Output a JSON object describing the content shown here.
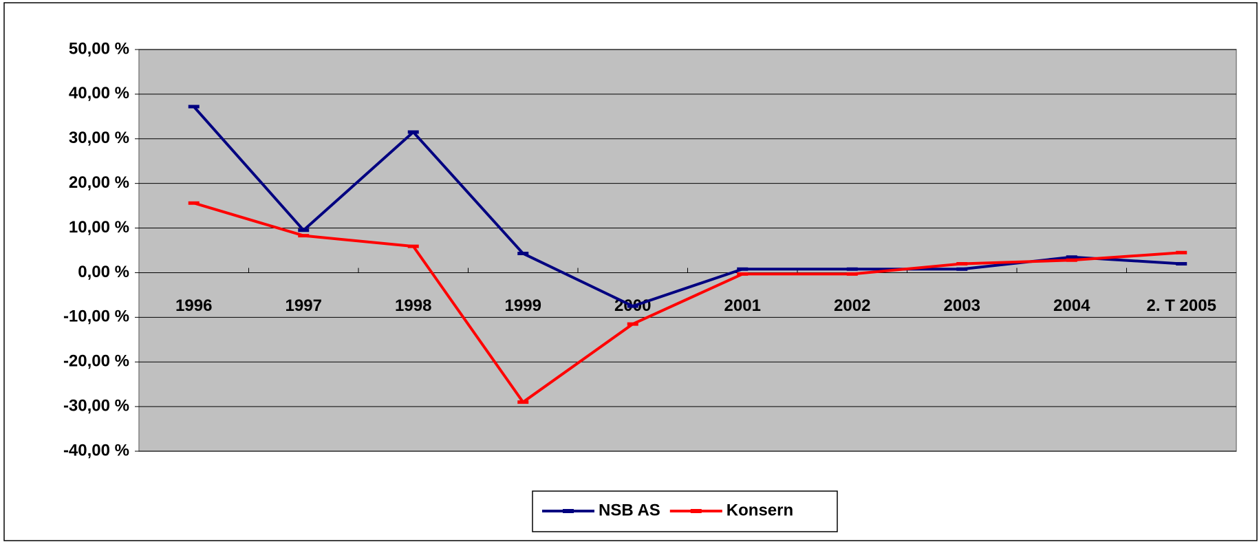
{
  "chart_data": {
    "type": "line",
    "categories": [
      "1996",
      "1997",
      "1998",
      "1999",
      "2000",
      "2001",
      "2002",
      "2003",
      "2004",
      "2. T 2005"
    ],
    "series": [
      {
        "name": "NSB AS",
        "color": "#000080",
        "values": [
          37.2,
          9.5,
          31.5,
          4.3,
          -7.5,
          0.8,
          0.8,
          0.8,
          3.5,
          2.0
        ]
      },
      {
        "name": "Konsern",
        "color": "#ff0000",
        "values": [
          15.6,
          8.3,
          5.9,
          -29.0,
          -11.5,
          -0.3,
          -0.3,
          2.0,
          2.8,
          4.5
        ]
      }
    ],
    "ylim": [
      -40,
      50
    ],
    "yticks": [
      {
        "value": -40,
        "label": "-40,00 %"
      },
      {
        "value": -30,
        "label": "-30,00 %"
      },
      {
        "value": -20,
        "label": "-20,00 %"
      },
      {
        "value": -10,
        "label": "-10,00 %"
      },
      {
        "value": 0,
        "label": "0,00 %"
      },
      {
        "value": 10,
        "label": "10,00 %"
      },
      {
        "value": 20,
        "label": "20,00 %"
      },
      {
        "value": 30,
        "label": "30,00 %"
      },
      {
        "value": 40,
        "label": "40,00 %"
      },
      {
        "value": 50,
        "label": "50,00 %"
      }
    ],
    "grid": true,
    "legend": "bottom"
  }
}
